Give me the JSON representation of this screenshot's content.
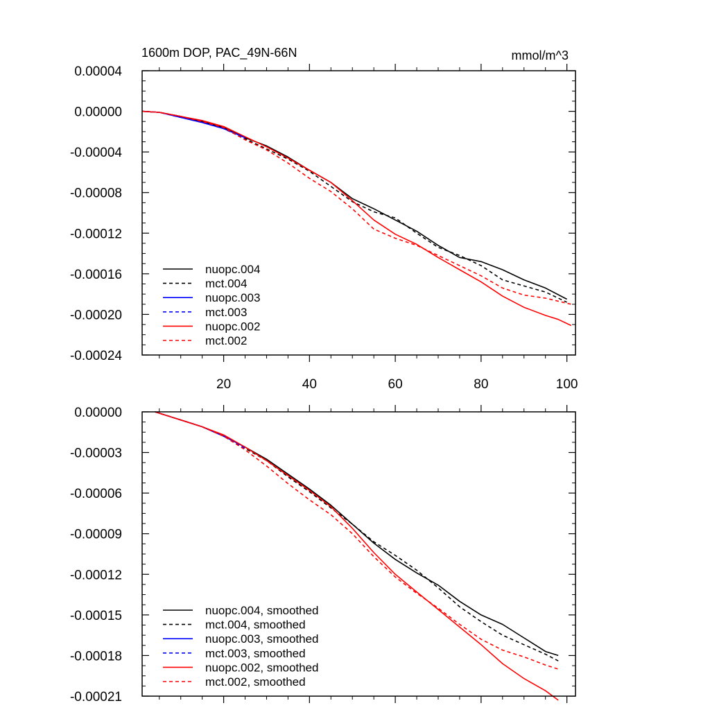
{
  "chart_data": [
    {
      "type": "line",
      "title": "1600m DOP, PAC_49N-66N",
      "units": "mmol/m^3",
      "xlim": [
        1,
        102
      ],
      "ylim": [
        -0.00024,
        4e-05
      ],
      "x_ticks": [
        20,
        40,
        60,
        80,
        100
      ],
      "x_tick_labels": [
        "20",
        "40",
        "60",
        "80",
        "100"
      ],
      "y_ticks": [
        4e-05,
        0.0,
        -4e-05,
        -8e-05,
        -0.00012,
        -0.00016,
        -0.0002,
        -0.00024
      ],
      "y_tick_labels": [
        "0.00004",
        "0.00000",
        "-0.00004",
        "-0.00008",
        "-0.00012",
        "-0.00016",
        "-0.00020",
        "-0.00024"
      ],
      "legend_position": "bottom-left",
      "series": [
        {
          "name": "nuopc.004",
          "color": "#000000",
          "dash": "solid",
          "x": [
            1,
            5,
            10,
            15,
            20,
            25,
            30,
            35,
            40,
            45,
            50,
            55,
            60,
            65,
            70,
            75,
            80,
            85,
            90,
            95,
            100
          ],
          "y": [
            0.0,
            -1e-06,
            -5e-06,
            -1e-05,
            -1.6e-05,
            -2.6e-05,
            -3.4e-05,
            -4.5e-05,
            -5.8e-05,
            -7e-05,
            -8.6e-05,
            -9.6e-05,
            -0.000107,
            -0.000118,
            -0.000132,
            -0.000144,
            -0.000148,
            -0.000156,
            -0.000166,
            -0.000174,
            -0.000185
          ]
        },
        {
          "name": "mct.004",
          "color": "#000000",
          "dash": "dashed",
          "x": [
            1,
            5,
            10,
            15,
            20,
            25,
            30,
            35,
            40,
            45,
            50,
            55,
            60,
            65,
            70,
            75,
            80,
            85,
            90,
            95,
            100
          ],
          "y": [
            0.0,
            -1e-06,
            -5e-06,
            -1e-05,
            -1.7e-05,
            -2.7e-05,
            -3.7e-05,
            -4.7e-05,
            -5.9e-05,
            -7.4e-05,
            -8.9e-05,
            -9.9e-05,
            -0.000105,
            -0.00012,
            -0.000134,
            -0.000142,
            -0.000152,
            -0.000166,
            -0.000172,
            -0.000178,
            -0.000188
          ]
        },
        {
          "name": "nuopc.003",
          "color": "#0000ff",
          "dash": "solid",
          "x": [
            1,
            5,
            10,
            15,
            20,
            25
          ],
          "y": [
            0.0,
            -1e-06,
            -6e-06,
            -1.1e-05,
            -1.7e-05,
            -2.6e-05
          ]
        },
        {
          "name": "mct.003",
          "color": "#0000ff",
          "dash": "dashed",
          "x": [
            1,
            5,
            10,
            15,
            20,
            25
          ],
          "y": [
            0.0,
            -1e-06,
            -6e-06,
            -1.1e-05,
            -1.7e-05,
            -2.7e-05
          ]
        },
        {
          "name": "nuopc.002",
          "color": "#ff0000",
          "dash": "solid",
          "x": [
            1,
            5,
            10,
            15,
            20,
            25,
            30,
            35,
            40,
            45,
            50,
            55,
            60,
            65,
            70,
            75,
            80,
            85,
            90,
            95,
            98,
            101
          ],
          "y": [
            0.0,
            -1e-06,
            -5e-06,
            -9e-06,
            -1.5e-05,
            -2.5e-05,
            -3.5e-05,
            -4.6e-05,
            -5.8e-05,
            -7e-05,
            -8.8e-05,
            -0.000107,
            -0.000121,
            -0.000131,
            -0.000144,
            -0.000156,
            -0.000168,
            -0.000182,
            -0.000193,
            -0.000201,
            -0.000205,
            -0.000211
          ]
        },
        {
          "name": "mct.002",
          "color": "#ff0000",
          "dash": "dashed",
          "x": [
            1,
            5,
            10,
            15,
            20,
            25,
            30,
            35,
            40,
            45,
            50,
            55,
            60,
            65,
            70,
            75,
            80,
            85,
            90,
            95,
            101
          ],
          "y": [
            0.0,
            -1e-06,
            -5e-06,
            -1e-05,
            -1.6e-05,
            -2.8e-05,
            -3.8e-05,
            -5.1e-05,
            -6.6e-05,
            -7.9e-05,
            -9.6e-05,
            -0.000116,
            -0.000125,
            -0.000132,
            -0.000142,
            -0.000152,
            -0.000162,
            -0.000174,
            -0.000181,
            -0.000184,
            -0.00019
          ]
        }
      ]
    },
    {
      "type": "line",
      "xlim": [
        1,
        102
      ],
      "ylim": [
        -0.00021,
        0.0
      ],
      "x_ticks": [
        20,
        40,
        60,
        80,
        100
      ],
      "y_ticks": [
        0.0,
        -3e-05,
        -6e-05,
        -9e-05,
        -0.00012,
        -0.00015,
        -0.00018,
        -0.00021
      ],
      "y_tick_labels": [
        "0.00000",
        "-0.00003",
        "-0.00006",
        "-0.00009",
        "-0.00012",
        "-0.00015",
        "-0.00018",
        "-0.00021"
      ],
      "legend_position": "bottom-left",
      "series": [
        {
          "name": "nuopc.004, smoothed",
          "color": "#000000",
          "dash": "solid",
          "x": [
            4,
            10,
            15,
            20,
            25,
            30,
            35,
            40,
            45,
            50,
            55,
            60,
            65,
            70,
            75,
            80,
            85,
            90,
            95,
            98
          ],
          "y": [
            0.0,
            -6e-06,
            -1.1e-05,
            -1.8e-05,
            -2.6e-05,
            -3.5e-05,
            -4.6e-05,
            -5.7e-05,
            -6.9e-05,
            -8.3e-05,
            -9.7e-05,
            -0.000109,
            -0.000119,
            -0.000128,
            -0.00014,
            -0.00015,
            -0.000157,
            -0.000167,
            -0.000177,
            -0.00018
          ]
        },
        {
          "name": "mct.004, smoothed",
          "color": "#000000",
          "dash": "dashed",
          "x": [
            4,
            10,
            15,
            20,
            25,
            30,
            35,
            40,
            45,
            50,
            55,
            60,
            65,
            70,
            75,
            80,
            85,
            90,
            95,
            98
          ],
          "y": [
            0.0,
            -6e-06,
            -1.1e-05,
            -1.8e-05,
            -2.7e-05,
            -3.6e-05,
            -4.8e-05,
            -5.9e-05,
            -7.1e-05,
            -8.3e-05,
            -9.6e-05,
            -0.000106,
            -0.000117,
            -0.00013,
            -0.000144,
            -0.000155,
            -0.000165,
            -0.000172,
            -0.000179,
            -0.000184
          ]
        },
        {
          "name": "nuopc.003, smoothed",
          "color": "#0000ff",
          "dash": "solid",
          "x": [
            4,
            10,
            15,
            20,
            25
          ],
          "y": [
            0.0,
            -6e-06,
            -1.1e-05,
            -1.8e-05,
            -2.6e-05
          ]
        },
        {
          "name": "mct.003, smoothed",
          "color": "#0000ff",
          "dash": "dashed",
          "x": [
            4,
            10,
            15,
            20,
            25
          ],
          "y": [
            0.0,
            -6e-06,
            -1.1e-05,
            -1.8e-05,
            -2.7e-05
          ]
        },
        {
          "name": "nuopc.002, smoothed",
          "color": "#ff0000",
          "dash": "solid",
          "x": [
            4,
            10,
            15,
            20,
            25,
            30,
            35,
            40,
            45,
            50,
            55,
            60,
            65,
            70,
            75,
            80,
            85,
            90,
            95,
            98
          ],
          "y": [
            0.0,
            -6e-06,
            -1.1e-05,
            -1.7e-05,
            -2.6e-05,
            -3.6e-05,
            -4.7e-05,
            -5.8e-05,
            -7e-05,
            -8.6e-05,
            -0.000104,
            -0.00012,
            -0.000133,
            -0.000146,
            -0.000159,
            -0.000172,
            -0.000186,
            -0.000197,
            -0.000206,
            -0.000213
          ]
        },
        {
          "name": "mct.002, smoothed",
          "color": "#ff0000",
          "dash": "dashed",
          "x": [
            4,
            10,
            15,
            20,
            25,
            30,
            35,
            40,
            45,
            50,
            55,
            60,
            65,
            70,
            75,
            80,
            85,
            90,
            95,
            98
          ],
          "y": [
            0.0,
            -6e-06,
            -1.1e-05,
            -1.8e-05,
            -2.8e-05,
            -4e-05,
            -5.3e-05,
            -6.5e-05,
            -7.6e-05,
            -9e-05,
            -0.000107,
            -0.000122,
            -0.000134,
            -0.000145,
            -0.000157,
            -0.000168,
            -0.000176,
            -0.000181,
            -0.000187,
            -0.00019
          ]
        }
      ]
    }
  ]
}
